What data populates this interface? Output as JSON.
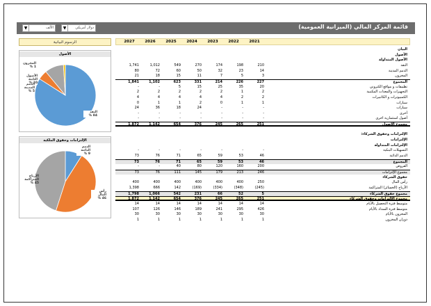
{
  "header": {
    "title": "قائمة المركز المالي (الميزانية العمومية)",
    "currency_select": "دولار أمريكي",
    "unit_select": "الألف"
  },
  "charts_panel_title": "الرسوم البيانية",
  "years": [
    "2027",
    "2026",
    "2025",
    "2024",
    "2023",
    "2022",
    "2021"
  ],
  "rows": [
    {
      "label": "البيان",
      "values": [],
      "style": "b"
    },
    {
      "label": "الأصول",
      "values": [],
      "style": "b"
    },
    {
      "label": "الأصول المتداولة",
      "values": [],
      "style": "b"
    },
    {
      "label": "النقد",
      "values": [
        "1,741",
        "1,012",
        "549",
        "270",
        "174",
        "198",
        "210"
      ],
      "style": ""
    },
    {
      "label": "الذمم المدينة",
      "values": [
        "80",
        "72",
        "60",
        "50",
        "32",
        "23",
        "14"
      ],
      "style": ""
    },
    {
      "label": "المخزون",
      "values": [
        "21",
        "18",
        "15",
        "11",
        "7",
        "5",
        "3"
      ],
      "style": ""
    },
    {
      "label": "المجموع",
      "values": [
        "1,841",
        "1,102",
        "623",
        "331",
        "214",
        "226",
        "227"
      ],
      "style": "b sum"
    },
    {
      "label": "تطبيقات و مواقع الكتروني",
      "values": [
        "-",
        "-",
        "5",
        "15",
        "25",
        "35",
        "20"
      ],
      "style": ""
    },
    {
      "label": "التجهيزات والمعدات المكتبية",
      "values": [
        "2",
        "2",
        "2",
        "2",
        "2",
        "1",
        "2"
      ],
      "style": ""
    },
    {
      "label": "الكمبيوترات و الكاتبيرات",
      "values": [
        "4",
        "4",
        "4",
        "4",
        "4",
        "2",
        "2"
      ],
      "style": ""
    },
    {
      "label": "سيارات",
      "values": [
        "0",
        "1",
        "1",
        "2",
        "0",
        "1",
        "1"
      ],
      "style": ""
    },
    {
      "label": "سيارات",
      "values": [
        "24",
        "36",
        "18",
        "24",
        "-",
        "-",
        "-"
      ],
      "style": ""
    },
    {
      "label": "أخرى",
      "values": [
        "-",
        "-",
        "-",
        "-",
        "-",
        "-",
        "-"
      ],
      "style": ""
    },
    {
      "label": "أصول استثمارية اخرى",
      "values": [
        "-",
        "-",
        "-",
        "-",
        "-",
        "-",
        "-"
      ],
      "style": ""
    },
    {
      "label": "مجموع الأصول",
      "values": [
        "1,872",
        "1,142",
        "654",
        "376",
        "245",
        "265",
        "251"
      ],
      "style": "b sum dbl"
    },
    {
      "label": "",
      "values": [],
      "style": ""
    },
    {
      "label": "الإلتزامات وحقوق الشركاء:",
      "values": [],
      "style": "b"
    },
    {
      "label": "الإلتزامات",
      "values": [],
      "style": "b"
    },
    {
      "label": "الإلتزامات المتداولة",
      "values": [],
      "style": "b"
    },
    {
      "label": "التسهيلات البنكية",
      "values": [
        "-",
        "-",
        "-",
        "-",
        "-",
        "-",
        "-"
      ],
      "style": ""
    },
    {
      "label": "الذمم الدائنة",
      "values": [
        "73",
        "76",
        "71",
        "65",
        "59",
        "53",
        "46"
      ],
      "style": ""
    },
    {
      "label": "المجموع",
      "values": [
        "73",
        "76",
        "71",
        "65",
        "59",
        "53",
        "46"
      ],
      "style": "b sum shade"
    },
    {
      "label": "القروض",
      "values": [
        "-",
        "-",
        "40",
        "80",
        "120",
        "160",
        "200"
      ],
      "style": ""
    },
    {
      "label": "مجموع الإلتزامات",
      "values": [
        "73",
        "76",
        "111",
        "145",
        "179",
        "213",
        "246"
      ],
      "style": "sum shade"
    },
    {
      "label": "حقوق الشركاء",
      "values": [],
      "style": "b"
    },
    {
      "label": "رأس المال",
      "values": [
        "400",
        "400",
        "400",
        "400",
        "400",
        "400",
        "250"
      ],
      "style": ""
    },
    {
      "label": "الأرباح (الخسائر) المتراكمة",
      "values": [
        "1,398",
        "666",
        "142",
        "(169)",
        "(334)",
        "(348)",
        "(245)"
      ],
      "style": ""
    },
    {
      "label": "مجموع حقوق الشركاء",
      "values": [
        "1,798",
        "1,066",
        "542",
        "231",
        "66",
        "52",
        "5"
      ],
      "style": "b sum shade"
    },
    {
      "label": "مجموع الإلتزامات وحقوق الشركاء",
      "values": [
        "1,872",
        "1,142",
        "654",
        "376",
        "245",
        "265",
        "251"
      ],
      "style": "b sum dbl hl"
    },
    {
      "label": "متوسط فترة التحصيل بالأيام",
      "values": [
        "14",
        "14",
        "14",
        "14",
        "14",
        "14",
        "14"
      ],
      "style": ""
    },
    {
      "label": "متوسط فترة السداد بالأيام",
      "values": [
        "107",
        "126",
        "146",
        "189",
        "241",
        "295",
        "426"
      ],
      "style": ""
    },
    {
      "label": "المخزون بالأيام",
      "values": [
        "30",
        "30",
        "30",
        "30",
        "30",
        "30",
        "30"
      ],
      "style": ""
    },
    {
      "label": "دوران المخزون",
      "values": [
        "1",
        "1",
        "1",
        "1",
        "1",
        "1",
        "1"
      ],
      "style": ""
    }
  ],
  "pie_assets": {
    "title": "الأصول",
    "slices": [
      {
        "name": "النقد",
        "pct": "84 %",
        "value": 84,
        "color": "#5b9bd5"
      },
      {
        "name": "الذمم المدينة",
        "pct": "5 %",
        "value": 5,
        "color": "#ed7d31"
      },
      {
        "name": "الأصول الثابتة",
        "pct": "10 %",
        "value": 10,
        "color": "#a5a5a5"
      },
      {
        "name": "المخزون",
        "pct": "1 %",
        "value": 1,
        "color": "#ffc000"
      }
    ]
  },
  "pie_liab": {
    "title": "الإلتزامات وحقوق الملكية",
    "slices": [
      {
        "name": "الذمم الدائنة",
        "pct": "9 %",
        "value": 9,
        "color": "#5b9bd5"
      },
      {
        "name": "رأس المال",
        "pct": "46 %",
        "value": 46,
        "color": "#ed7d31"
      },
      {
        "name": "الأرباح المتراكمة",
        "pct": "45 %",
        "value": 45,
        "color": "#a5a5a5"
      }
    ]
  }
}
